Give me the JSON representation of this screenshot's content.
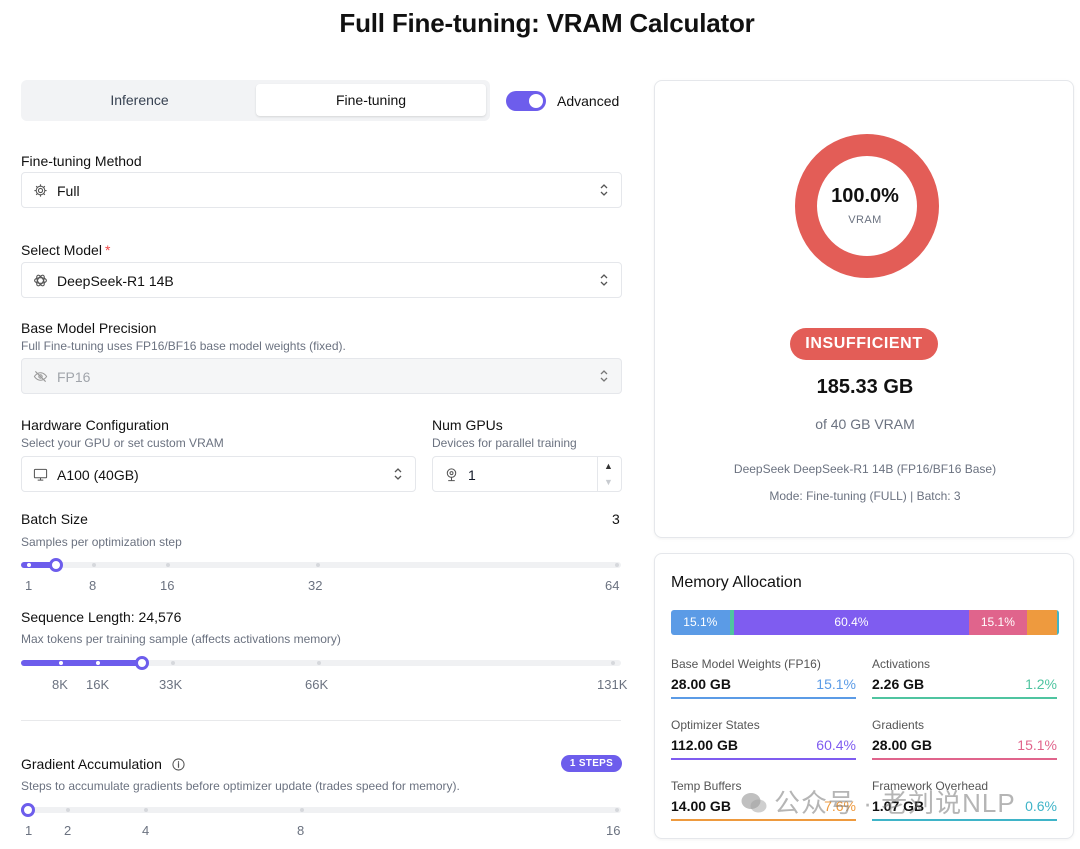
{
  "title": "Full Fine-tuning: VRAM Calculator",
  "tabs": {
    "inference": "Inference",
    "finetuning": "Fine-tuning",
    "active": "Fine-tuning"
  },
  "advanced": {
    "label": "Advanced",
    "on": true
  },
  "method": {
    "label": "Fine-tuning Method",
    "value": "Full",
    "icon": "gear-icon"
  },
  "model": {
    "label": "Select Model",
    "required_mark": "*",
    "value": "DeepSeek-R1 14B",
    "icon": "openai-logo-icon"
  },
  "precision": {
    "label": "Base Model Precision",
    "sub": "Full Fine-tuning uses FP16/BF16 base model weights (fixed).",
    "value": "FP16",
    "icon": "eye-off-icon"
  },
  "hardware": {
    "label": "Hardware Configuration",
    "sub": "Select your GPU or set custom VRAM",
    "value": "A100 (40GB)",
    "icon": "monitor-icon"
  },
  "gpus": {
    "label": "Num GPUs",
    "sub": "Devices for parallel training",
    "value": "1",
    "icon": "webcam-icon"
  },
  "batch": {
    "label": "Batch Size",
    "sub": "Samples per optimization step",
    "value": "3",
    "ticks": [
      "1",
      "8",
      "16",
      "32",
      "64"
    ],
    "fraction": 0.047
  },
  "seq": {
    "label": "Sequence Length: 24,576",
    "sub": "Max tokens per training sample (affects activations memory)",
    "ticks": [
      "8K",
      "16K",
      "33K",
      "66K",
      "131K"
    ],
    "fraction": 0.19
  },
  "grad": {
    "label": "Gradient Accumulation",
    "sub": "Steps to accumulate gradients before optimizer update (trades speed for memory).",
    "badge": "1 STEPS",
    "ticks": [
      "1",
      "2",
      "4",
      "8",
      "16"
    ],
    "fraction": 0.0
  },
  "summary": {
    "percent": "100.0%",
    "percent_value": 100,
    "unit": "VRAM",
    "status": "INSUFFICIENT",
    "total": "185.33 GB",
    "of": "of 40 GB VRAM",
    "model_line": "DeepSeek DeepSeek-R1 14B (FP16/BF16 Base)",
    "mode_line": "Mode: Fine-tuning (FULL) | Batch: 3",
    "status_color": "#e35d57"
  },
  "memory": {
    "title": "Memory Allocation",
    "segments": [
      {
        "label": "15.1%",
        "value": 15.1,
        "color": "#5b9be6"
      },
      {
        "label": "",
        "value": 1.2,
        "color": "#4fc4a0"
      },
      {
        "label": "60.4%",
        "value": 60.4,
        "color": "#7f5cf0"
      },
      {
        "label": "15.1%",
        "value": 15.1,
        "color": "#e0648c"
      },
      {
        "label": "",
        "value": 7.6,
        "color": "#ee9a3e"
      },
      {
        "label": "",
        "value": 0.6,
        "color": "#3fb4c8"
      }
    ],
    "items": [
      {
        "name": "Base Model Weights (FP16)",
        "gb": "28.00 GB",
        "pct": "15.1%",
        "color": "#5b9be6"
      },
      {
        "name": "Activations",
        "gb": "2.26 GB",
        "pct": "1.2%",
        "color": "#4fc4a0"
      },
      {
        "name": "Optimizer States",
        "gb": "112.00 GB",
        "pct": "60.4%",
        "color": "#7f5cf0"
      },
      {
        "name": "Gradients",
        "gb": "28.00 GB",
        "pct": "15.1%",
        "color": "#e0648c"
      },
      {
        "name": "Temp Buffers",
        "gb": "14.00 GB",
        "pct": "7.6%",
        "color": "#ee9a3e"
      },
      {
        "name": "Framework Overhead",
        "gb": "1.07 GB",
        "pct": "0.6%",
        "color": "#3fb4c8"
      }
    ]
  },
  "watermark": "公众号 · 老刘说NLP"
}
